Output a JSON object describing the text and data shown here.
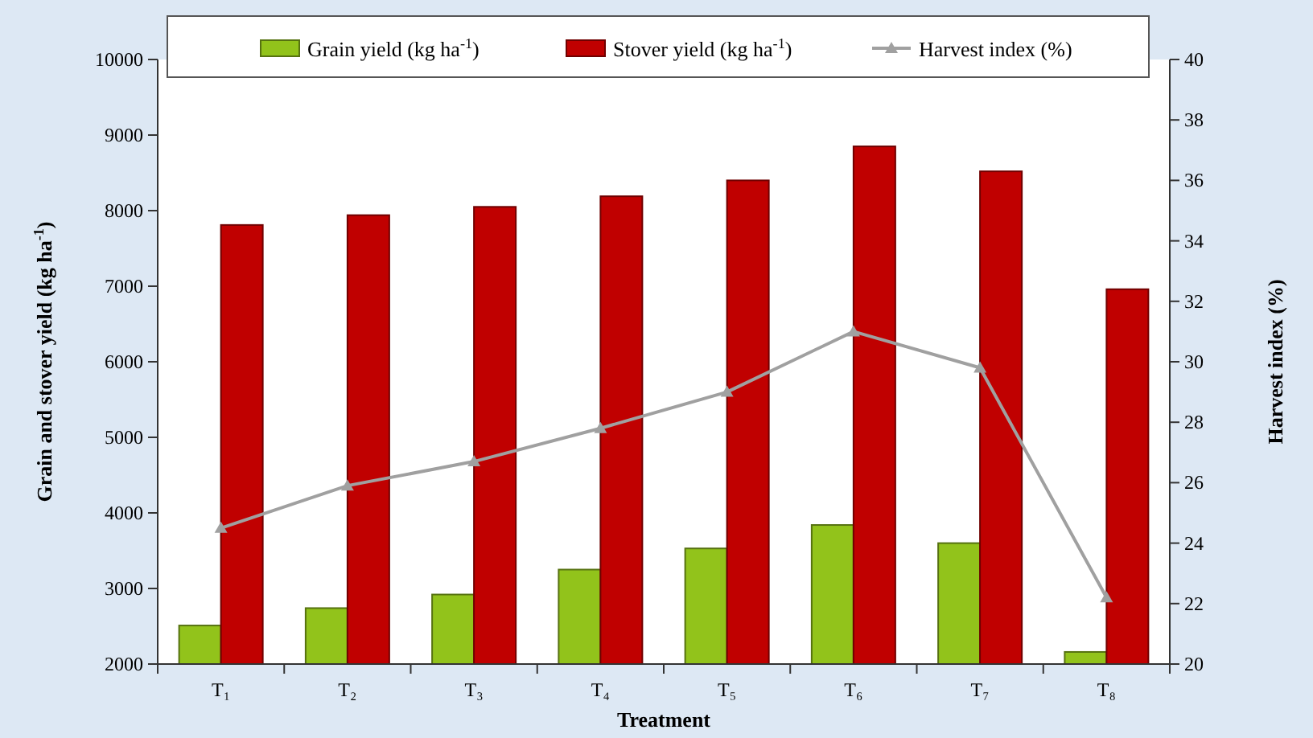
{
  "chart_data": {
    "type": "bar",
    "xlabel": "Treatment",
    "ylabel": "Grain and stover yield (kg ha$^{-1}$)",
    "y2label": "Harvest index (%)",
    "categories": [
      "T₁",
      "T₂",
      "T₃",
      "T₄",
      "T₅",
      "T₆",
      "T₇",
      "T₈"
    ],
    "series": [
      {
        "name": "Grain yield (kg ha$^{-1}$)",
        "color": "#92c31b",
        "values": [
          2510,
          2740,
          2920,
          3250,
          3530,
          3840,
          3600,
          2160
        ]
      },
      {
        "name": "Stover yield (kg ha$^{-1}$)",
        "color": "#c00000",
        "values": [
          7810,
          7940,
          8050,
          8190,
          8400,
          8850,
          8520,
          6960
        ]
      },
      {
        "name": "Harvest index (%)",
        "type": "line",
        "axis": "y2",
        "color": "#a0a0a0",
        "marker": "triangle",
        "values": [
          24.5,
          25.9,
          26.7,
          27.8,
          29.0,
          31.0,
          29.8,
          22.2
        ]
      }
    ],
    "ylim": [
      2000,
      10000
    ],
    "yticks": [
      2000,
      3000,
      4000,
      5000,
      6000,
      7000,
      8000,
      9000,
      10000
    ],
    "y2lim": [
      20,
      40
    ],
    "y2ticks": [
      20,
      22,
      24,
      26,
      28,
      30,
      32,
      34,
      36,
      38,
      40
    ],
    "legend": "top",
    "grid": false
  }
}
